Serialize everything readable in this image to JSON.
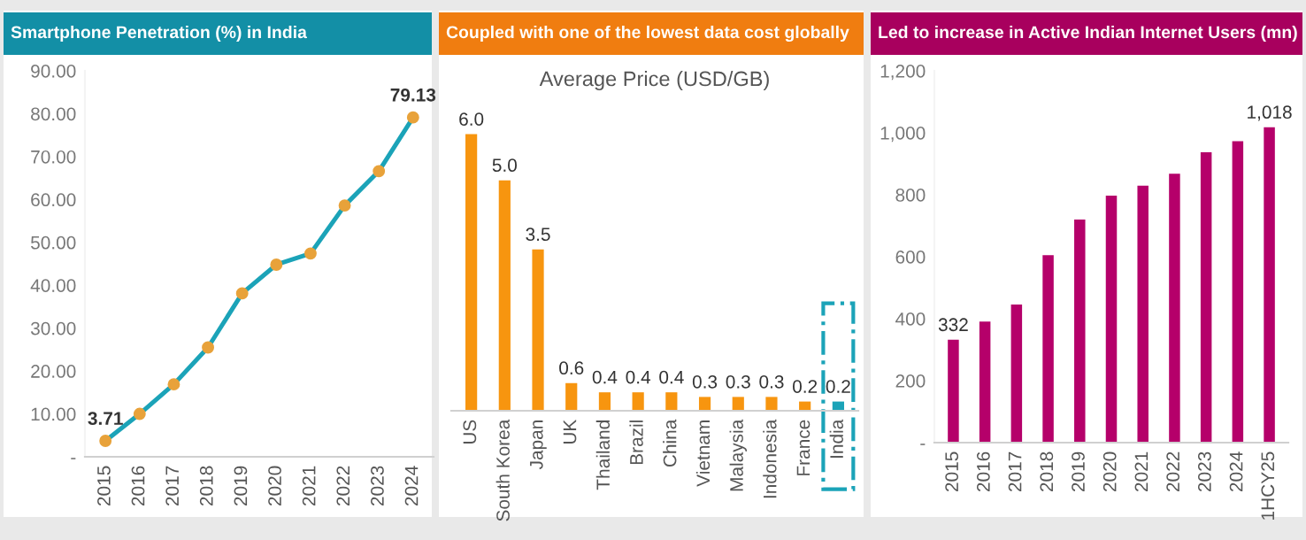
{
  "chart_data": [
    {
      "type": "line",
      "title": "Smartphone Penetration (%) in India",
      "categories": [
        "2015",
        "2016",
        "2017",
        "2018",
        "2019",
        "2020",
        "2021",
        "2022",
        "2023",
        "2024"
      ],
      "series": [
        {
          "color": "#1ba3b8",
          "values": [
            3.71,
            10.0,
            16.9,
            25.5,
            38.1,
            44.8,
            47.4,
            58.6,
            66.6,
            79.13
          ],
          "value_labels": [
            "3.71",
            null,
            null,
            null,
            null,
            null,
            null,
            null,
            null,
            "79.13"
          ]
        }
      ],
      "marker": "circle",
      "line_style": "solid",
      "ylim": [
        0,
        90
      ],
      "yticks": [
        {
          "value": 0,
          "label": "-"
        },
        {
          "value": 10,
          "label": "10.00"
        },
        {
          "value": 20,
          "label": "20.00"
        },
        {
          "value": 30,
          "label": "30.00"
        },
        {
          "value": 40,
          "label": "40.00"
        },
        {
          "value": 50,
          "label": "50.00"
        },
        {
          "value": 60,
          "label": "60.00"
        },
        {
          "value": 70,
          "label": "70.00"
        },
        {
          "value": 80,
          "label": "80.00"
        },
        {
          "value": 90,
          "label": "90.00"
        }
      ],
      "grid": false,
      "legend": false
    },
    {
      "type": "bar",
      "title": "Coupled with one of the lowest data cost globally",
      "subtitle": "Average Price (USD/GB)",
      "categories": [
        "US",
        "South Korea",
        "Japan",
        "UK",
        "Thailand",
        "Brazil",
        "China",
        "Vietnam",
        "Malaysia",
        "Indonesia",
        "France",
        "India"
      ],
      "values": [
        6.0,
        5.0,
        3.5,
        0.6,
        0.4,
        0.4,
        0.4,
        0.3,
        0.3,
        0.3,
        0.2,
        0.2
      ],
      "value_labels": [
        "6.0",
        "5.0",
        "3.5",
        "0.6",
        "0.4",
        "0.4",
        "0.4",
        "0.3",
        "0.3",
        "0.3",
        "0.2",
        "0.2"
      ],
      "colors": [
        "#f7950f",
        "#f7950f",
        "#f7950f",
        "#f7950f",
        "#f7950f",
        "#f7950f",
        "#f7950f",
        "#f7950f",
        "#f7950f",
        "#f7950f",
        "#f7950f",
        "#1ba3b8"
      ],
      "tick_labels": "x",
      "grid": false,
      "legend": false
    },
    {
      "type": "bar",
      "title": "Led to increase in Active Indian Internet Users (mn)",
      "categories": [
        "2015",
        "2016",
        "2017",
        "2018",
        "2019",
        "2020",
        "2021",
        "2022",
        "2023",
        "2024",
        "1HCY25"
      ],
      "values": [
        332,
        391,
        446,
        605,
        720,
        797,
        829,
        868,
        937,
        973,
        1018
      ],
      "value_labels": [
        "332",
        null,
        null,
        null,
        null,
        null,
        null,
        null,
        null,
        null,
        "1,018"
      ],
      "color": "#b5006a",
      "ylim": [
        0,
        1200
      ],
      "yticks": [
        {
          "value": 0,
          "label": "-"
        },
        200,
        400,
        600,
        800,
        {
          "value": 1000,
          "label": "1,000"
        },
        {
          "value": 1200,
          "label": "1,200"
        }
      ],
      "grid": false,
      "legend": false
    }
  ]
}
